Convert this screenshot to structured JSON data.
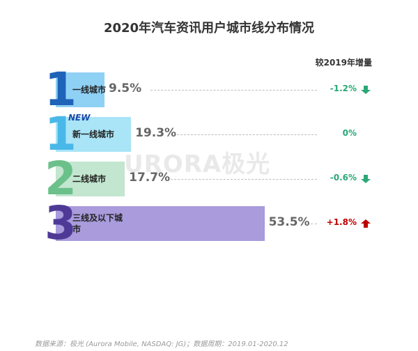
{
  "title": "2020年汽车资讯用户城市线分布情况",
  "change_header": "较2019年增量",
  "watermark": "URORA极光",
  "footer": "数据来源：极光 (Aurora Mobile, NASDAQ: JG)；数据周期：2019.01-2020.12",
  "chart_data": {
    "type": "bar",
    "categories": [
      "一线城市",
      "新一线城市",
      "二线城市",
      "三线及以下城市"
    ],
    "values": [
      9.5,
      19.3,
      17.7,
      53.5
    ],
    "value_labels": [
      "9.5%",
      "19.3%",
      "17.7%",
      "53.5%"
    ],
    "tier_numbers": [
      "1",
      "1",
      "2",
      "3"
    ],
    "badges": [
      "",
      "NEW",
      "",
      ""
    ],
    "change_labels": [
      "-1.2%",
      "0%",
      "-0.6%",
      "+1.8%"
    ],
    "change_direction": [
      "down",
      "none",
      "down",
      "up"
    ],
    "bar_colors": [
      "#8fd0f5",
      "#a9e4f7",
      "#c2e6cf",
      "#a99bdc"
    ],
    "number_colors": [
      "#1e63b8",
      "#49b8e8",
      "#6cc08a",
      "#4e3a96"
    ],
    "up_color": "#c00000",
    "down_color": "#2aa876",
    "neutral_color": "#2aa876",
    "xlim": [
      0,
      100
    ]
  }
}
